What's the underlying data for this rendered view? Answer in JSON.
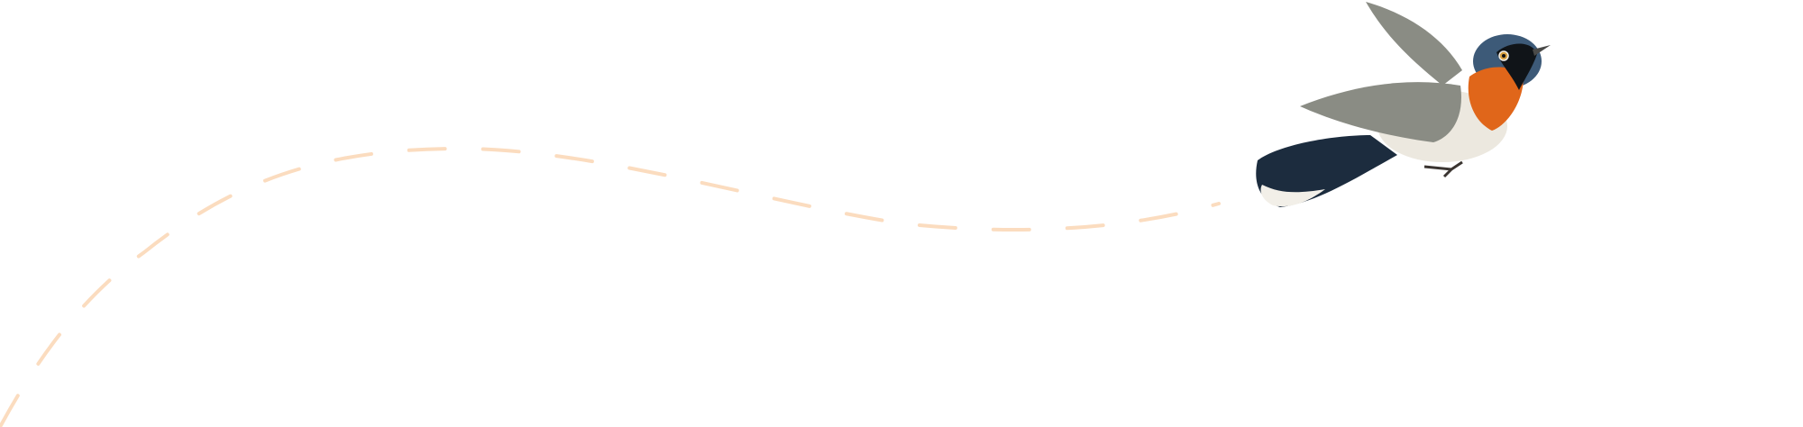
{
  "illustration": {
    "subject": "bird-icon",
    "path_style": "dashed",
    "colors": {
      "path": "#fbdcbf",
      "bird_orange": "#e0661a",
      "bird_blue_black": "#1c2c3e",
      "bird_head_blue": "#3d5a78",
      "bird_wing_gray": "#8a8c84",
      "bird_belly": "#ece8df",
      "background": "#ffffff"
    }
  }
}
